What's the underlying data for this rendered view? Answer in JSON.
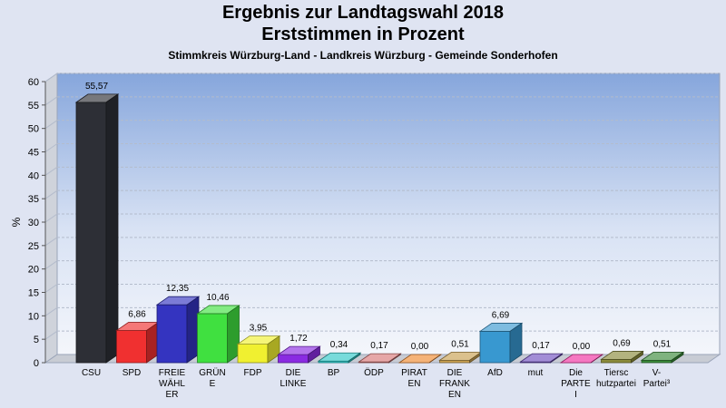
{
  "chart_data": {
    "type": "bar",
    "title": "Ergebnis zur Landtagswahl 2018",
    "subtitle": "Erststimmen in Prozent",
    "subtitle2": "Stimmkreis Würzburg-Land - Landkreis Würzburg - Gemeinde Sonderhofen",
    "ylabel": "%",
    "ylim": [
      0,
      60
    ],
    "yticks": [
      0,
      5,
      10,
      15,
      20,
      25,
      30,
      35,
      40,
      45,
      50,
      55,
      60
    ],
    "grid": true,
    "categories": [
      [
        "CSU"
      ],
      [
        "SPD"
      ],
      [
        "FREIE",
        "WÄHL",
        "ER"
      ],
      [
        "GRÜN",
        "E"
      ],
      [
        "FDP"
      ],
      [
        "DIE",
        "LINKE"
      ],
      [
        "BP"
      ],
      [
        "ÖDP"
      ],
      [
        "PIRAT",
        "EN"
      ],
      [
        "DIE",
        "FRANK",
        "EN"
      ],
      [
        "AfD"
      ],
      [
        "mut"
      ],
      [
        "Die",
        "PARTE",
        "I"
      ],
      [
        "Tiersc",
        "hutzpartei"
      ],
      [
        "V-",
        "Partei³"
      ]
    ],
    "values": [
      55.57,
      6.86,
      12.35,
      10.46,
      3.95,
      1.72,
      0.34,
      0.17,
      0.0,
      0.51,
      6.69,
      0.17,
      0.0,
      0.69,
      0.51
    ],
    "value_labels": [
      "55,57",
      "6,86",
      "12,35",
      "10,46",
      "3,95",
      "1,72",
      "0,34",
      "0,17",
      "0,00",
      "0,51",
      "6,69",
      "0,17",
      "0,00",
      "0,69",
      "0,51"
    ],
    "colors": [
      "#2d2f36",
      "#f03030",
      "#3434c0",
      "#40e040",
      "#f0f030",
      "#8a2be2",
      "#30c8c8",
      "#d87878",
      "#f08a30",
      "#c8a050",
      "#3898d0",
      "#7050c0",
      "#f030a0",
      "#8a8a3a",
      "#3a8a3a"
    ]
  }
}
